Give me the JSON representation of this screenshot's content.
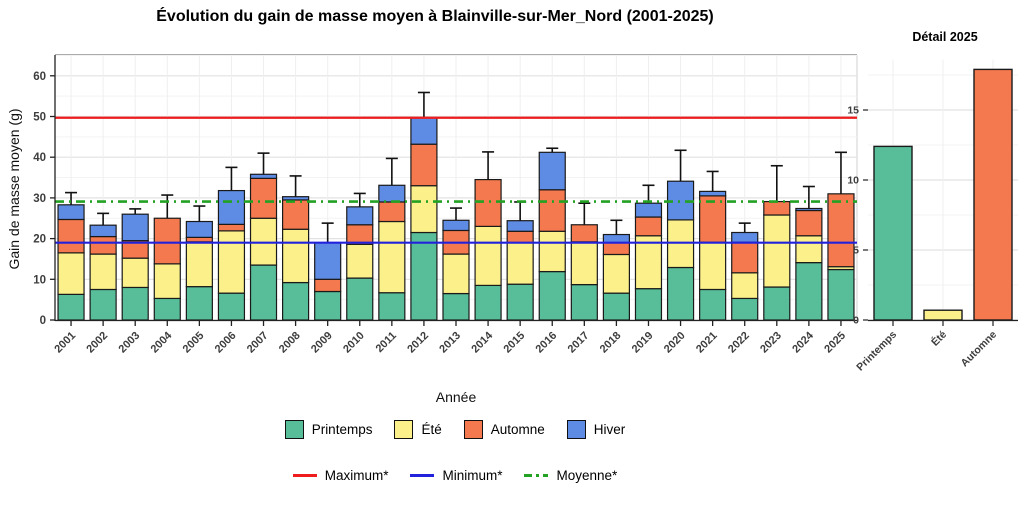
{
  "page": {
    "main_title": "Évolution du gain de masse moyen à Blainville-sur-Mer_Nord (2001-2025)"
  },
  "chart_data": [
    {
      "id": "main",
      "type": "bar",
      "stacked": true,
      "title": "Évolution du gain de masse moyen à Blainville-sur-Mer_Nord (2001-2025)",
      "xlabel": "Année",
      "ylabel": "Gain de masse moyen (g)",
      "ylim": [
        0,
        65
      ],
      "yticks": [
        0,
        10,
        20,
        30,
        40,
        50,
        60
      ],
      "grid": true,
      "legend_position": "bottom",
      "categories": [
        "2001",
        "2002",
        "2003",
        "2004",
        "2005",
        "2006",
        "2007",
        "2008",
        "2009",
        "2010",
        "2011",
        "2012",
        "2013",
        "2014",
        "2015",
        "2016",
        "2017",
        "2018",
        "2019",
        "2020",
        "2021",
        "2022",
        "2023",
        "2024",
        "2025"
      ],
      "series": [
        {
          "name": "Printemps",
          "color": "#58BE99",
          "values": [
            6.3,
            7.5,
            8.0,
            5.3,
            8.2,
            6.6,
            13.5,
            9.2,
            7.0,
            10.3,
            6.7,
            21.5,
            6.5,
            8.5,
            8.8,
            11.9,
            8.7,
            6.6,
            7.7,
            12.9,
            7.5,
            5.3,
            8.1,
            14.1,
            12.4
          ]
        },
        {
          "name": "Été",
          "color": "#FBF08A",
          "values": [
            10.2,
            8.7,
            7.2,
            8.5,
            11.0,
            15.3,
            11.5,
            13.1,
            0,
            8.3,
            17.5,
            11.5,
            9.7,
            14.5,
            10.2,
            9.9,
            10.5,
            9.5,
            13.0,
            11.7,
            11.6,
            6.3,
            17.7,
            6.6,
            0.7
          ]
        },
        {
          "name": "Automne",
          "color": "#F5794E",
          "values": [
            8.2,
            4.3,
            4.3,
            11.2,
            1.1,
            1.6,
            9.8,
            7.2,
            3.0,
            4.8,
            4.8,
            10.2,
            5.8,
            11.5,
            2.8,
            10.2,
            4.2,
            2.9,
            4.6,
            0,
            11.4,
            7.5,
            3.3,
            6.2,
            17.9
          ]
        },
        {
          "name": "Hiver",
          "color": "#5E8CE4",
          "values": [
            3.6,
            2.8,
            6.5,
            0,
            3.9,
            8.3,
            1.0,
            0.8,
            9.0,
            4.4,
            4.1,
            6.5,
            2.5,
            0,
            2.6,
            9.2,
            0,
            2.0,
            3.4,
            9.5,
            1.1,
            2.4,
            0,
            0.5,
            0
          ]
        }
      ],
      "error_bar_tops": [
        31.3,
        26.2,
        27.3,
        30.7,
        28.0,
        37.5,
        41.0,
        35.4,
        23.8,
        31.1,
        39.7,
        55.9,
        27.5,
        41.3,
        29.0,
        42.2,
        28.7,
        24.5,
        33.1,
        41.7,
        36.5,
        23.8,
        37.9,
        32.8,
        41.2
      ],
      "reference_lines": [
        {
          "name": "Maximum*",
          "value": 49.7,
          "color": "#EE1C1C",
          "style": "solid"
        },
        {
          "name": "Minimum*",
          "value": 19.0,
          "color": "#2222DD",
          "style": "solid"
        },
        {
          "name": "Moyenne*",
          "value": 29.1,
          "color": "#23A123",
          "style": "dashdot"
        }
      ]
    },
    {
      "id": "detail",
      "type": "bar",
      "title": "Détail 2025",
      "xlabel": "",
      "ylabel": "",
      "ylim": [
        0,
        18.6
      ],
      "yticks": [
        0,
        5,
        10,
        15
      ],
      "grid": true,
      "categories": [
        "Printemps",
        "Été",
        "Automne"
      ],
      "values": [
        12.4,
        0.7,
        17.9
      ],
      "colors": [
        "#58BE99",
        "#FBF08A",
        "#F5794E"
      ]
    }
  ],
  "legend": {
    "seasons": [
      "Printemps",
      "Été",
      "Automne",
      "Hiver"
    ],
    "lines": [
      "Maximum*",
      "Minimum*",
      "Moyenne*"
    ]
  }
}
